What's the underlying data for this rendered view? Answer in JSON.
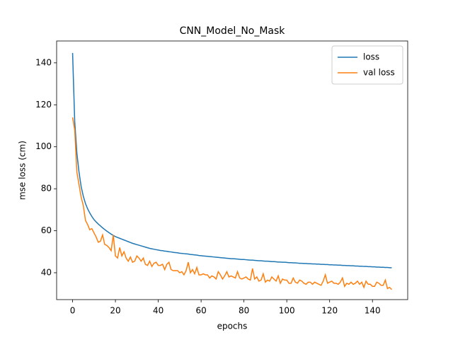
{
  "chart_data": {
    "type": "line",
    "title": "CNN_Model_No_Mask",
    "x_label": "epochs",
    "y_label": "mse loss (cm)",
    "x": [
      0,
      1,
      2,
      3,
      4,
      5,
      6,
      7,
      8,
      9,
      10,
      11,
      12,
      13,
      14,
      15,
      16,
      17,
      18,
      19,
      20,
      21,
      22,
      23,
      24,
      25,
      26,
      27,
      28,
      29,
      30,
      31,
      32,
      33,
      34,
      35,
      36,
      37,
      38,
      39,
      40,
      41,
      42,
      43,
      44,
      45,
      46,
      47,
      48,
      49,
      50,
      51,
      52,
      53,
      54,
      55,
      56,
      57,
      58,
      59,
      60,
      61,
      62,
      63,
      64,
      65,
      66,
      67,
      68,
      69,
      70,
      71,
      72,
      73,
      74,
      75,
      76,
      77,
      78,
      79,
      80,
      81,
      82,
      83,
      84,
      85,
      86,
      87,
      88,
      89,
      90,
      91,
      92,
      93,
      94,
      95,
      96,
      97,
      98,
      99,
      100,
      101,
      102,
      103,
      104,
      105,
      106,
      107,
      108,
      109,
      110,
      111,
      112,
      113,
      114,
      115,
      116,
      117,
      118,
      119,
      120,
      121,
      122,
      123,
      124,
      125,
      126,
      127,
      128,
      129,
      130,
      131,
      132,
      133,
      134,
      135,
      136,
      137,
      138,
      139,
      140,
      141,
      142,
      143,
      144,
      145,
      146,
      147,
      148,
      149
    ],
    "series": [
      {
        "name": "loss",
        "color": "#1f77b4",
        "values": [
          144.7,
          112,
          97,
          88,
          81,
          76.5,
          73,
          70.5,
          68.5,
          66.8,
          65.3,
          64.2,
          63.2,
          62.3,
          61.4,
          60.6,
          59.8,
          59.1,
          58.4,
          57.8,
          57.2,
          56.8,
          56.4,
          56,
          55.6,
          55.2,
          54.8,
          54.4,
          54,
          53.7,
          53.4,
          53.1,
          52.8,
          52.5,
          52.2,
          51.9,
          51.6,
          51.4,
          51.2,
          51,
          50.8,
          50.6,
          50.5,
          50.3,
          50.2,
          50,
          49.9,
          49.7,
          49.6,
          49.5,
          49.3,
          49.2,
          49.1,
          49,
          48.9,
          48.7,
          48.6,
          48.5,
          48.4,
          48.2,
          48.1,
          48,
          47.9,
          47.8,
          47.7,
          47.6,
          47.5,
          47.4,
          47.3,
          47.2,
          47.1,
          47,
          46.9,
          46.8,
          46.7,
          46.7,
          46.6,
          46.5,
          46.4,
          46.3,
          46.3,
          46.2,
          46.1,
          46,
          46,
          45.9,
          45.8,
          45.7,
          45.7,
          45.6,
          45.5,
          45.5,
          45.4,
          45.3,
          45.3,
          45.2,
          45.1,
          45.1,
          45,
          45,
          44.9,
          44.8,
          44.8,
          44.7,
          44.7,
          44.6,
          44.5,
          44.5,
          44.4,
          44.4,
          44.3,
          44.3,
          44.2,
          44.2,
          44.1,
          44.1,
          44,
          44,
          43.9,
          43.9,
          43.8,
          43.8,
          43.7,
          43.7,
          43.6,
          43.6,
          43.5,
          43.5,
          43.4,
          43.4,
          43.3,
          43.3,
          43.2,
          43.2,
          43.1,
          43.1,
          43,
          43,
          42.9,
          42.9,
          42.8,
          42.8,
          42.7,
          42.7,
          42.6,
          42.6,
          42.5,
          42.5,
          42.4,
          42.4
        ]
      },
      {
        "name": "val loss",
        "color": "#ff7f0e",
        "values": [
          114,
          108,
          88,
          82,
          76,
          72,
          65,
          63,
          60.5,
          61,
          59,
          57,
          54.5,
          55,
          58,
          53.5,
          53,
          52,
          50.5,
          58,
          48,
          47,
          52,
          48,
          50,
          47,
          45.5,
          47.5,
          45,
          45.5,
          48,
          47,
          45.5,
          47,
          44,
          43.5,
          45.5,
          43,
          44.5,
          45,
          43.5,
          43.5,
          44,
          41.5,
          44,
          45,
          41.5,
          41,
          41,
          41,
          40,
          40.5,
          39,
          41,
          45,
          40,
          41.5,
          39.5,
          42.5,
          39,
          39,
          39.5,
          39,
          39,
          37.5,
          38.5,
          38,
          37,
          40.5,
          39,
          37,
          38.5,
          40.5,
          38,
          38.5,
          38,
          37.5,
          40.5,
          37.5,
          37,
          37.5,
          38,
          37,
          36.5,
          42,
          37,
          38,
          36,
          36.5,
          39.5,
          35.5,
          36.5,
          36,
          38,
          37,
          36,
          38.5,
          35,
          37,
          36.5,
          36.5,
          35,
          35,
          37.5,
          35.5,
          35,
          36.5,
          36,
          35,
          34.5,
          35.5,
          35.5,
          34.5,
          35.5,
          35,
          34.5,
          34,
          36,
          39,
          35,
          35.5,
          36,
          35,
          35,
          34.5,
          35.5,
          37.5,
          33.5,
          35,
          34.5,
          35.5,
          34.5,
          35,
          36,
          34.5,
          35.5,
          33,
          36,
          34.5,
          34.5,
          33.5,
          33.5,
          35.5,
          35,
          34,
          34,
          36.5,
          32.5,
          33,
          32
        ]
      }
    ],
    "xlim": [
      -7.45,
      156.45
    ],
    "ylim": [
      27.2,
      150.4
    ],
    "xticks": [
      0,
      20,
      40,
      60,
      80,
      100,
      120,
      140
    ],
    "yticks": [
      40,
      60,
      80,
      100,
      120,
      140
    ],
    "legend": "upper right"
  }
}
